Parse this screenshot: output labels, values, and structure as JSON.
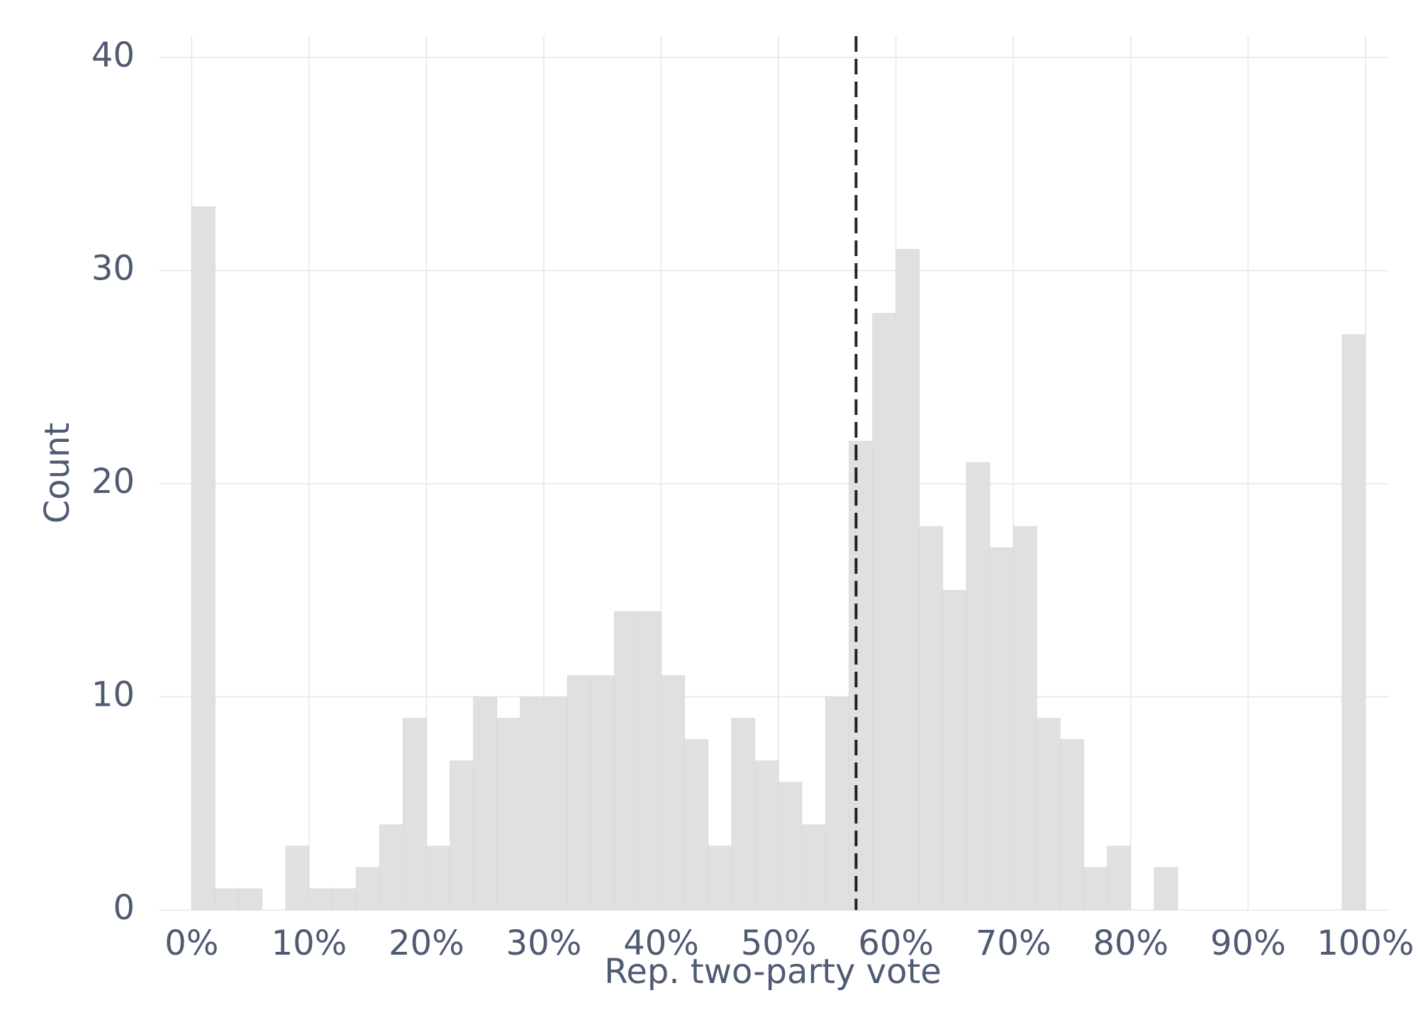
{
  "chart_data": {
    "type": "histogram",
    "x_label": "Rep. two-party vote",
    "y_label": "Count",
    "bins": [
      0,
      2,
      4,
      6,
      8,
      10,
      12,
      14,
      16,
      18,
      20,
      22,
      24,
      26,
      28,
      30,
      32,
      34,
      36,
      38,
      40,
      42,
      44,
      46,
      48,
      50,
      52,
      54,
      56,
      58,
      60,
      62,
      64,
      66,
      68,
      70,
      72,
      74,
      76,
      78,
      80,
      82,
      84,
      86,
      88,
      90,
      92,
      94,
      96,
      98,
      100
    ],
    "counts": [
      33,
      1,
      1,
      0,
      3,
      1,
      1,
      2,
      4,
      9,
      3,
      7,
      10,
      9,
      10,
      10,
      11,
      11,
      14,
      14,
      11,
      8,
      3,
      9,
      7,
      6,
      4,
      10,
      22,
      28,
      31,
      18,
      15,
      21,
      17,
      18,
      9,
      8,
      2,
      3,
      0,
      2,
      0,
      0,
      0,
      0,
      0,
      0,
      0,
      27
    ],
    "color": "#e0e0e0",
    "vline": 56.6,
    "xlim": [
      -2.8,
      102
    ],
    "ylim": [
      0,
      41
    ],
    "xticks": [
      {
        "value": 0,
        "label": "0%"
      },
      {
        "value": 10,
        "label": "10%"
      },
      {
        "value": 20,
        "label": "20%"
      },
      {
        "value": 30,
        "label": "30%"
      },
      {
        "value": 40,
        "label": "40%"
      },
      {
        "value": 50,
        "label": "50%"
      },
      {
        "value": 60,
        "label": "60%"
      },
      {
        "value": 70,
        "label": "70%"
      },
      {
        "value": 80,
        "label": "80%"
      },
      {
        "value": 90,
        "label": "90%"
      },
      {
        "value": 100,
        "label": "100%"
      }
    ],
    "yticks": [
      0,
      10,
      20,
      30,
      40
    ],
    "grid": true
  }
}
